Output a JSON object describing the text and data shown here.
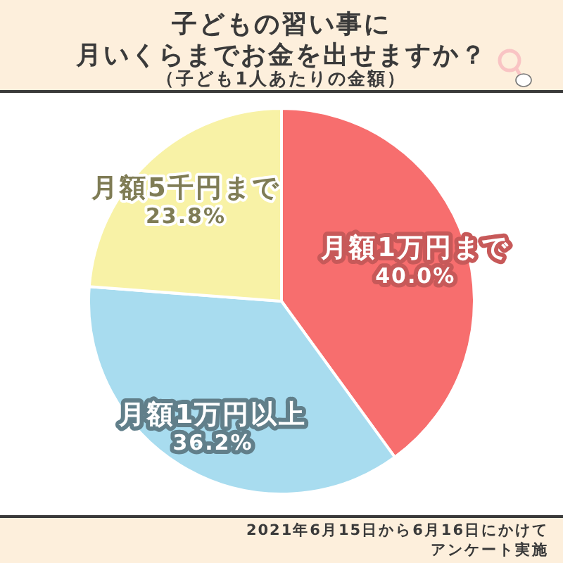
{
  "chart_data": {
    "type": "pie",
    "title": "子どもの習い事に月いくらまでお金を出せますか？",
    "subtitle": "（子ども1人あたりの金額）",
    "categories": [
      "月額1万円まで",
      "月額1万円以上",
      "月額5千円まで"
    ],
    "values": [
      40.0,
      36.2,
      23.8
    ],
    "colors": [
      "#f76e6e",
      "#a8dcef",
      "#f8f2a6"
    ],
    "value_labels": [
      "40.0%",
      "36.2%",
      "23.8%"
    ],
    "annotations": [
      "2021年6月15日から6月16日にかけて",
      "アンケート実施"
    ]
  }
}
